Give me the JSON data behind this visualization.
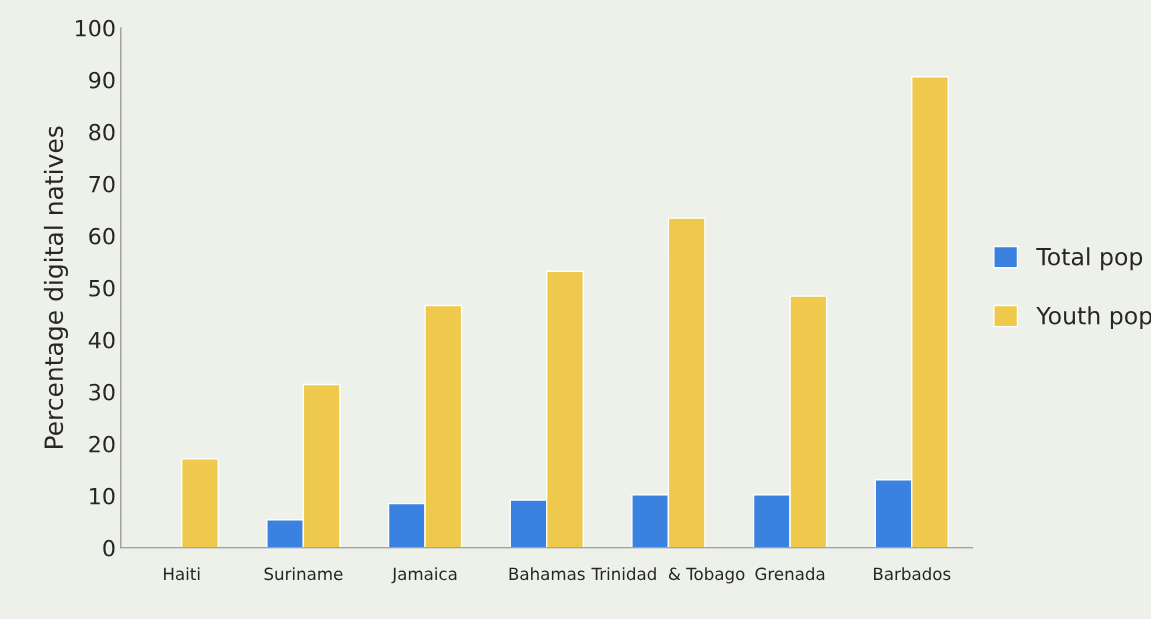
{
  "chart_data": {
    "type": "bar",
    "ylabel": "Percentage digital natives",
    "categories": [
      "Haiti",
      "Suriname",
      "Jamaica",
      "Bahamas",
      "Trinidad  & Tobago",
      "Grenada",
      "Barbados"
    ],
    "series": [
      {
        "name": "Total pop",
        "color": "#3b82e0",
        "values": [
          null,
          5.4,
          8.5,
          9.2,
          10.2,
          10.2,
          13.1
        ]
      },
      {
        "name": "Youth pop",
        "color": "#eec94b",
        "values": [
          17.1,
          31.4,
          46.6,
          53.2,
          63.4,
          48.4,
          90.6
        ]
      }
    ],
    "ylim": [
      0,
      100
    ],
    "yticks": [
      0,
      10,
      20,
      30,
      40,
      50,
      60,
      70,
      80,
      90,
      100
    ],
    "grid": false,
    "legend": "right"
  }
}
